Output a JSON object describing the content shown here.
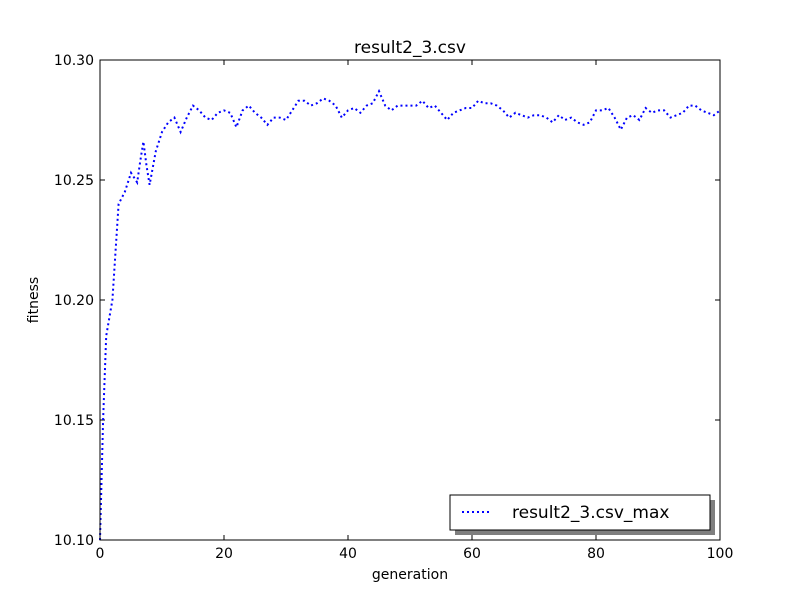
{
  "chart_data": {
    "type": "line",
    "title": "result2_3.csv",
    "xlabel": "generation",
    "ylabel": "fitness",
    "xlim": [
      0,
      100
    ],
    "ylim": [
      10.1,
      10.3
    ],
    "x_ticks": [
      "0",
      "20",
      "40",
      "60",
      "80",
      "100"
    ],
    "y_ticks": [
      "10.10",
      "10.15",
      "10.20",
      "10.25",
      "10.30"
    ],
    "grid": false,
    "legend_position": "lower-right",
    "series": [
      {
        "name": "result2_3.csv_max",
        "color": "#0000ff",
        "line_style": "dotted",
        "x": [
          0,
          0.5,
          1,
          2,
          3,
          4,
          5,
          6,
          6.5,
          7,
          7.5,
          8,
          9,
          10,
          11,
          12,
          13,
          14,
          15,
          16,
          17,
          18,
          19,
          20,
          21,
          22,
          23,
          24,
          25,
          26,
          27,
          28,
          29,
          30,
          31,
          32,
          33,
          34,
          35,
          36,
          37,
          38,
          39,
          40,
          41,
          42,
          43,
          44,
          45,
          46,
          47,
          48,
          49,
          50,
          51,
          52,
          53,
          54,
          55,
          56,
          57,
          58,
          59,
          60,
          61,
          62,
          63,
          64,
          65,
          66,
          67,
          68,
          69,
          70,
          71,
          72,
          73,
          74,
          75,
          76,
          77,
          78,
          79,
          80,
          81,
          82,
          83,
          84,
          85,
          86,
          87,
          88,
          89,
          90,
          91,
          92,
          93,
          94,
          95,
          96,
          97,
          98,
          99,
          100
        ],
        "y": [
          10.1,
          10.15,
          10.185,
          10.2,
          10.24,
          10.245,
          10.253,
          10.249,
          10.258,
          10.266,
          10.256,
          10.248,
          10.262,
          10.27,
          10.274,
          10.276,
          10.27,
          10.276,
          10.281,
          10.279,
          10.276,
          10.275,
          10.278,
          10.279,
          10.278,
          10.272,
          10.279,
          10.281,
          10.278,
          10.276,
          10.273,
          10.276,
          10.276,
          10.275,
          10.279,
          10.283,
          10.283,
          10.281,
          10.282,
          10.284,
          10.283,
          10.281,
          10.276,
          10.279,
          10.28,
          10.278,
          10.281,
          10.282,
          10.287,
          10.281,
          10.279,
          10.281,
          10.281,
          10.281,
          10.281,
          10.283,
          10.28,
          10.281,
          10.278,
          10.275,
          10.278,
          10.279,
          10.28,
          10.28,
          10.283,
          10.282,
          10.282,
          10.281,
          10.279,
          10.276,
          10.278,
          10.277,
          10.276,
          10.277,
          10.277,
          10.276,
          10.274,
          10.277,
          10.275,
          10.276,
          10.274,
          10.273,
          10.274,
          10.279,
          10.279,
          10.28,
          10.276,
          10.271,
          10.276,
          10.277,
          10.275,
          10.28,
          10.278,
          10.279,
          10.279,
          10.276,
          10.277,
          10.278,
          10.281,
          10.281,
          10.279,
          10.278,
          10.277,
          10.279
        ]
      }
    ]
  }
}
